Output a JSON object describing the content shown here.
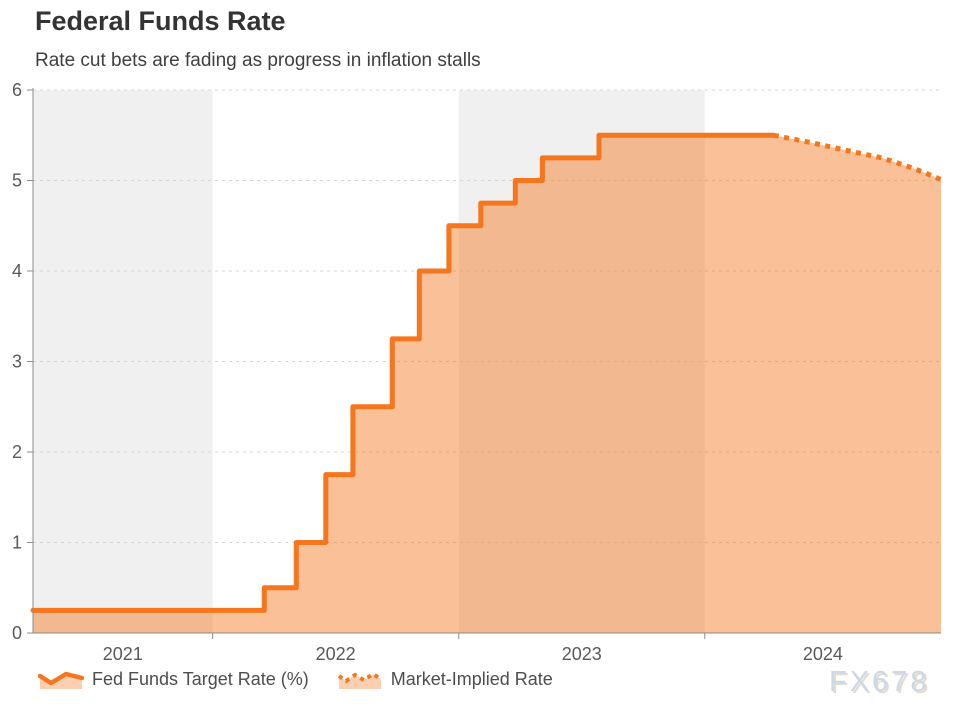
{
  "header": {
    "title": "Federal Funds Rate",
    "subtitle": "Rate cut bets are fading as progress in inflation stalls"
  },
  "watermark": "FX678",
  "colors": {
    "line": "#f5761d",
    "fill": "rgba(245,118,30,0.46)",
    "legend_fill": "rgba(245,118,30,0.35)",
    "band": "#f0f0f0",
    "grid": "#d6d6d6",
    "axis": "#8c8c8c",
    "tick_label": "#595959",
    "watermark": "#ccd8e6"
  },
  "legend": {
    "items": [
      {
        "label": "Fed Funds Target Rate (%)",
        "icon": "solid-area-wave-icon"
      },
      {
        "label": "Market-Implied Rate",
        "icon": "dotted-area-wave-icon"
      }
    ]
  },
  "chart_data": {
    "type": "area",
    "title": "Federal Funds Rate",
    "subtitle": "Rate cut bets are fading as progress in inflation stalls",
    "grid": true,
    "legend_position": "bottom-left",
    "x_axis": {
      "range": [
        2021.27,
        2024.96
      ],
      "tick_years": [
        2022,
        2023,
        2024
      ],
      "bands": [
        {
          "year": 2021,
          "label": "2021",
          "shaded": true
        },
        {
          "year": 2022,
          "label": "2022",
          "shaded": false
        },
        {
          "year": 2023,
          "label": "2023",
          "shaded": true
        },
        {
          "year": 2024,
          "label": "2024",
          "shaded": false
        }
      ]
    },
    "y_axis": {
      "range": [
        0,
        6
      ],
      "ticks": [
        0,
        1,
        2,
        3,
        4,
        5,
        6
      ]
    },
    "series": [
      {
        "name": "Fed Funds Target Rate (%)",
        "style": "solid-step-area",
        "points": [
          [
            2021.27,
            0.25
          ],
          [
            2022.21,
            0.25
          ],
          [
            2022.21,
            0.5
          ],
          [
            2022.34,
            0.5
          ],
          [
            2022.34,
            1.0
          ],
          [
            2022.46,
            1.0
          ],
          [
            2022.46,
            1.75
          ],
          [
            2022.57,
            1.75
          ],
          [
            2022.57,
            2.5
          ],
          [
            2022.73,
            2.5
          ],
          [
            2022.73,
            3.25
          ],
          [
            2022.84,
            3.25
          ],
          [
            2022.84,
            4.0
          ],
          [
            2022.96,
            4.0
          ],
          [
            2022.96,
            4.5
          ],
          [
            2023.09,
            4.5
          ],
          [
            2023.09,
            4.75
          ],
          [
            2023.23,
            4.75
          ],
          [
            2023.23,
            5.0
          ],
          [
            2023.34,
            5.0
          ],
          [
            2023.34,
            5.25
          ],
          [
            2023.57,
            5.25
          ],
          [
            2023.57,
            5.5
          ],
          [
            2024.28,
            5.5
          ]
        ]
      },
      {
        "name": "Market-Implied Rate",
        "style": "dotted-line",
        "points": [
          [
            2024.28,
            5.5
          ],
          [
            2024.43,
            5.42
          ],
          [
            2024.58,
            5.33
          ],
          [
            2024.72,
            5.25
          ],
          [
            2024.82,
            5.16
          ],
          [
            2024.9,
            5.08
          ],
          [
            2024.96,
            5.01
          ]
        ]
      }
    ]
  }
}
